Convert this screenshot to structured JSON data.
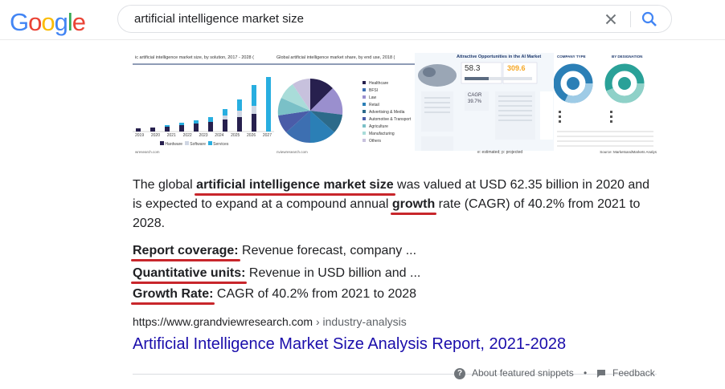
{
  "logo": {
    "text": "Google",
    "letters": [
      {
        "ch": "G",
        "color": "#4285F4"
      },
      {
        "ch": "o",
        "color": "#EA4335"
      },
      {
        "ch": "o",
        "color": "#FBBC05"
      },
      {
        "ch": "g",
        "color": "#4285F4"
      },
      {
        "ch": "l",
        "color": "#34A853"
      },
      {
        "ch": "e",
        "color": "#EA4335"
      }
    ]
  },
  "search": {
    "query": "artificial intelligence market size"
  },
  "images": {
    "t1_title": "ic artificial intelligence market size, by solution, 2017 - 2028 (",
    "t1_years": [
      "2019",
      "2020",
      "2021",
      "2022",
      "2023",
      "2024",
      "2025",
      "2026",
      "2027"
    ],
    "t1_legend": [
      "Hardware",
      "Software",
      "Services"
    ],
    "t1_source": "wresearch.com",
    "t2_title": "Global artificial intelligence market share, by end use, 2018 (",
    "t2_legend": [
      "Healthcare",
      "BFSI",
      "Law",
      "Retail",
      "Advertising & Media",
      "Automotive & Transport",
      "Agriculture",
      "Manufacturing",
      "Others"
    ],
    "t2_source": "nviewresearch.com",
    "t3_title": "Attractive Opportunities in the AI Market",
    "t3_val1": "58.3",
    "t3_val2": "309.6",
    "t3_cagr": "CAGR",
    "t3_cagr_val": "39.7%",
    "t3_footer": "e: estimated; p: projected",
    "t4_label1": "COMPANY TYPE",
    "t4_label2": "BY DESIGNATION",
    "t4_source": "Source: MarketsandMarkets Analys"
  },
  "snippet": {
    "p1_a": "The global ",
    "p1_b": "artificial intelligence market size",
    "p1_c": " was valued at USD 62.35 billion in 2020 and",
    "p2_a": "is expected to expand at a compound annual ",
    "p2_b": "growth",
    "p2_c": " rate (CAGR) of 40.2% from 2021 to",
    "p3": "2028.",
    "k1": "Report coverage:",
    "v1": " Revenue forecast, company ...",
    "k2": "Quantitative units:",
    "v2": " Revenue in USD billion and ...",
    "k3": "Growth Rate:",
    "v3": " CAGR of 40.2% from 2021 to 2028"
  },
  "result": {
    "url_host": "https://www.grandviewresearch.com",
    "url_crumb": " › industry-analysis",
    "title": "Artificial Intelligence Market Size Analysis Report, 2021-2028"
  },
  "footer": {
    "about": "About featured snippets",
    "dot": "•",
    "feedback": "Feedback"
  },
  "colors": {
    "link": "#1a0dab",
    "underline": "#c8262b"
  }
}
